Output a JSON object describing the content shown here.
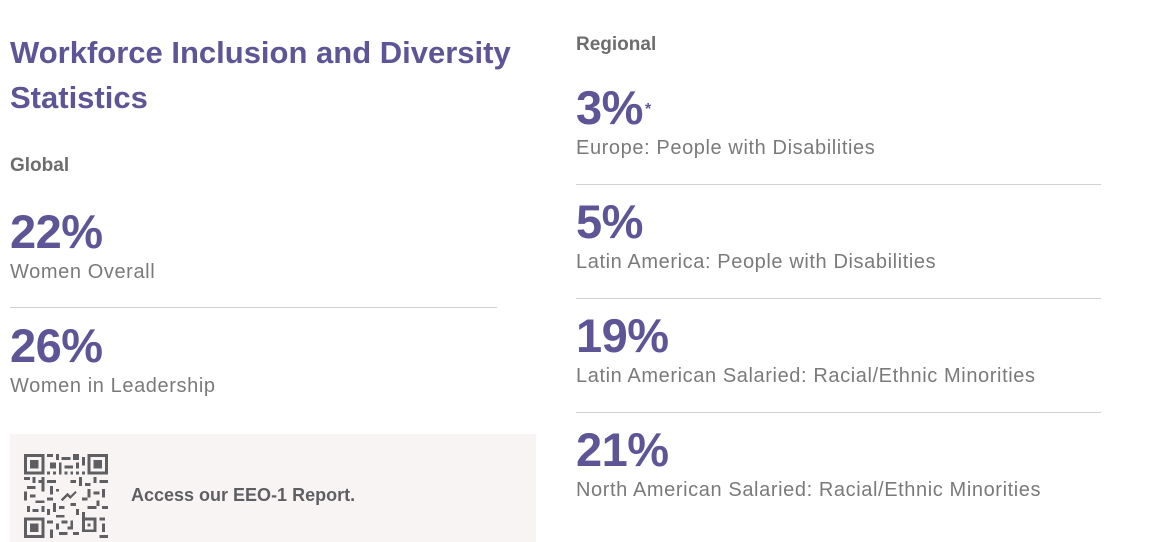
{
  "title": "Workforce Inclusion and Diversity Statistics",
  "global": {
    "label": "Global",
    "stats": [
      {
        "value": "22%",
        "description": "Women Overall"
      },
      {
        "value": "26%",
        "description": "Women in Leadership"
      }
    ]
  },
  "regional": {
    "label": "Regional",
    "stats": [
      {
        "value": "3%",
        "footnote": "*",
        "description": "Europe: People with Disabilities"
      },
      {
        "value": "5%",
        "description": "Latin America: People with Disabilities"
      },
      {
        "value": "19%",
        "description": "Latin American Salaried: Racial/Ethnic Minorities"
      },
      {
        "value": "21%",
        "description": "North American Salaried: Racial/Ethnic Minorities"
      }
    ]
  },
  "eeo": {
    "link_text": "Access our EEO-1 Report.",
    "qr_icon": "qr-code-icon"
  },
  "colors": {
    "accent": "#5e5596",
    "label_gray": "#6d6d6d",
    "text_gray": "#7a7a7a",
    "panel_bg": "#f7f4f3"
  }
}
